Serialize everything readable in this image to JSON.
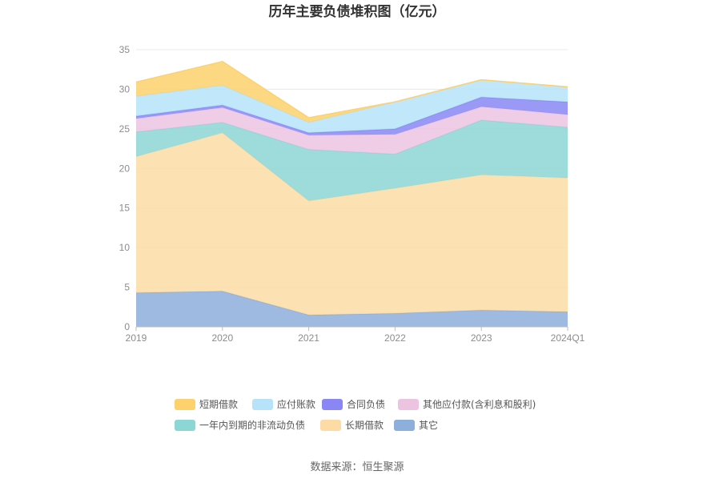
{
  "chart_data": {
    "type": "area",
    "title": "历年主要负债堆积图（亿元）",
    "categories": [
      "2019",
      "2020",
      "2021",
      "2022",
      "2023",
      "2024Q1"
    ],
    "y_ticks": [
      "0",
      "5",
      "10",
      "15",
      "20",
      "25",
      "30",
      "35"
    ],
    "ylim": [
      0,
      35
    ],
    "stacked": true,
    "grid": true,
    "legend_position": "bottom",
    "series": [
      {
        "name": "其它",
        "color": "#8eaedc",
        "values": [
          4.3,
          4.5,
          1.5,
          1.7,
          2.1,
          1.9
        ]
      },
      {
        "name": "长期借款",
        "color": "#fcdca4",
        "values": [
          17.2,
          20.0,
          14.4,
          15.8,
          17.1,
          16.9
        ]
      },
      {
        "name": "一年内到期的非流动负债",
        "color": "#8dd6d6",
        "values": [
          3.1,
          1.3,
          6.5,
          4.3,
          6.9,
          6.4
        ]
      },
      {
        "name": "其他应付款(含利息和股利)",
        "color": "#ecc4e2",
        "values": [
          1.7,
          1.9,
          1.8,
          2.5,
          1.7,
          1.6
        ]
      },
      {
        "name": "合同负债",
        "color": "#8a87f5",
        "values": [
          0.3,
          0.3,
          0.3,
          0.7,
          1.2,
          1.6
        ]
      },
      {
        "name": "应付账款",
        "color": "#b6e3fa",
        "values": [
          2.5,
          2.5,
          1.3,
          3.4,
          2.2,
          1.9
        ]
      },
      {
        "name": "短期借款",
        "color": "#fdd16c",
        "values": [
          1.8,
          3.0,
          0.6,
          0.0,
          0.0,
          0.0
        ]
      }
    ],
    "legend_order": [
      "短期借款",
      "应付账款",
      "合同负债",
      "其他应付款(含利息和股利)",
      "一年内到期的非流动负债",
      "长期借款",
      "其它"
    ]
  },
  "source": "数据来源：恒生聚源"
}
